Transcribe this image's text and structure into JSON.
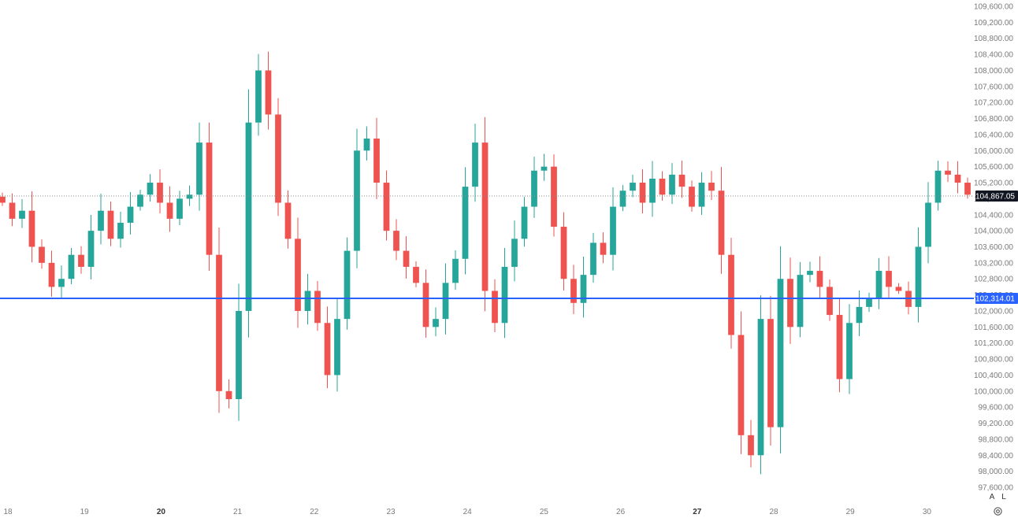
{
  "chart_data": {
    "type": "candlestick",
    "y_range": [
      97600,
      109600
    ],
    "y_ticks": [
      "109,600.00",
      "109,200.00",
      "108,800.00",
      "108,400.00",
      "108,000.00",
      "107,600.00",
      "107,200.00",
      "106,800.00",
      "106,400.00",
      "106,000.00",
      "105,600.00",
      "105,200.00",
      "104,800.00",
      "104,400.00",
      "104,000.00",
      "103,600.00",
      "103,200.00",
      "102,800.00",
      "102,400.00",
      "102,000.00",
      "101,600.00",
      "101,200.00",
      "100,800.00",
      "100,400.00",
      "100,000.00",
      "99,600.00",
      "99,200.00",
      "98,800.00",
      "98,400.00",
      "98,000.00",
      "97,600.00"
    ],
    "x_ticks": [
      {
        "label": "18",
        "bold": false
      },
      {
        "label": "19",
        "bold": false
      },
      {
        "label": "20",
        "bold": true
      },
      {
        "label": "21",
        "bold": false
      },
      {
        "label": "22",
        "bold": false
      },
      {
        "label": "23",
        "bold": false
      },
      {
        "label": "24",
        "bold": false
      },
      {
        "label": "25",
        "bold": false
      },
      {
        "label": "26",
        "bold": false
      },
      {
        "label": "27",
        "bold": true
      },
      {
        "label": "28",
        "bold": false
      },
      {
        "label": "29",
        "bold": false
      },
      {
        "label": "30",
        "bold": false
      }
    ],
    "current_price": {
      "value": 104867.05,
      "label": "104,867.05"
    },
    "horizontal_line": {
      "value": 102314.01,
      "label": "102,314.01",
      "color": "#2962ff"
    },
    "up_color": "#26a69a",
    "down_color": "#ef5350",
    "candles_close": [
      104700,
      104300,
      104500,
      103600,
      103200,
      102600,
      102800,
      103400,
      103100,
      104000,
      104500,
      103800,
      104200,
      104600,
      104900,
      105200,
      104700,
      104300,
      104800,
      104900,
      106200,
      103400,
      100000,
      99800,
      102000,
      106700,
      108000,
      106900,
      104700,
      103800,
      102000,
      102500,
      101700,
      100400,
      101800,
      103500,
      106000,
      106300,
      105200,
      104000,
      103500,
      103100,
      102700,
      101600,
      101800,
      102700,
      103300,
      105100,
      106200,
      102500,
      101700,
      103100,
      103800,
      104600,
      105500,
      105600,
      104100,
      102800,
      102200,
      102900,
      103700,
      103400,
      104600,
      105000,
      105200,
      104700,
      105300,
      104900,
      105400,
      105100,
      104600,
      105200,
      105000,
      103400,
      101400,
      98900,
      98400,
      101800,
      99100,
      102800,
      101600,
      102900,
      103000,
      102600,
      101900,
      100300,
      101700,
      102100,
      102300,
      103000,
      102600,
      102500,
      102100,
      103600,
      104700,
      105500,
      105400,
      105200,
      104900
    ]
  },
  "axis_buttons": {
    "auto": "A",
    "log": "L"
  },
  "icons": {
    "settings": "gear-icon"
  }
}
